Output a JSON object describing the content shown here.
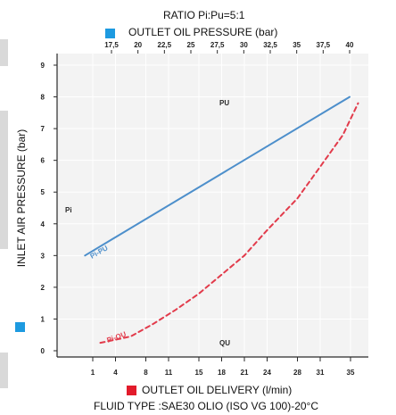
{
  "colors": {
    "pressure_series": "#4d8fcb",
    "delivery_series": "#e23b4b",
    "plot_background": "#f3f3f3",
    "grid": "#ffffff",
    "axis": "#2a2a2a",
    "pressure_marker": "#1d9ae0",
    "delivery_marker": "#e21b2b"
  },
  "chart_data": {
    "type": "line",
    "title": "RATIO Pi:Pu=5:1",
    "top_axis_label": "OUTLET OIL PRESSURE (bar)",
    "bottom_axis_label": "OUTLET OIL DELIVERY (l/min)",
    "ylabel": "INLET AIR PRESSURE (bar)",
    "footer": "FLUID TYPE :SAE30 OLIO (ISO VG 100)-20°C",
    "y_ticks": [
      "0",
      "1",
      "2",
      "3",
      "4",
      "5",
      "6",
      "7",
      "8",
      "9"
    ],
    "ylim": [
      0,
      9
    ],
    "x_bottom_ticks": [
      "1",
      "4",
      "8",
      "11",
      "15",
      "18",
      "21",
      "24",
      "28",
      "31",
      "35"
    ],
    "x_top_ticks": [
      "17,5",
      "20",
      "22,5",
      "25",
      "27,5",
      "30",
      "32,5",
      "35",
      "37,5",
      "40"
    ],
    "grid": true,
    "inner_labels": {
      "pu": "PU",
      "pi": "Pi",
      "qu": "QU"
    },
    "series": [
      {
        "name": "Pi-PU",
        "axis": "top",
        "style": "solid",
        "x": [
          15,
          40
        ],
        "y": [
          3.0,
          8.0
        ]
      },
      {
        "name": "Pi-QU",
        "axis": "bottom",
        "style": "dashed",
        "x": [
          2,
          4,
          6,
          9,
          12,
          15,
          18,
          21,
          24,
          28,
          31,
          34,
          36
        ],
        "y": [
          0.25,
          0.35,
          0.45,
          0.85,
          1.3,
          1.8,
          2.4,
          3.0,
          3.8,
          4.8,
          5.8,
          6.8,
          7.8
        ]
      }
    ]
  }
}
